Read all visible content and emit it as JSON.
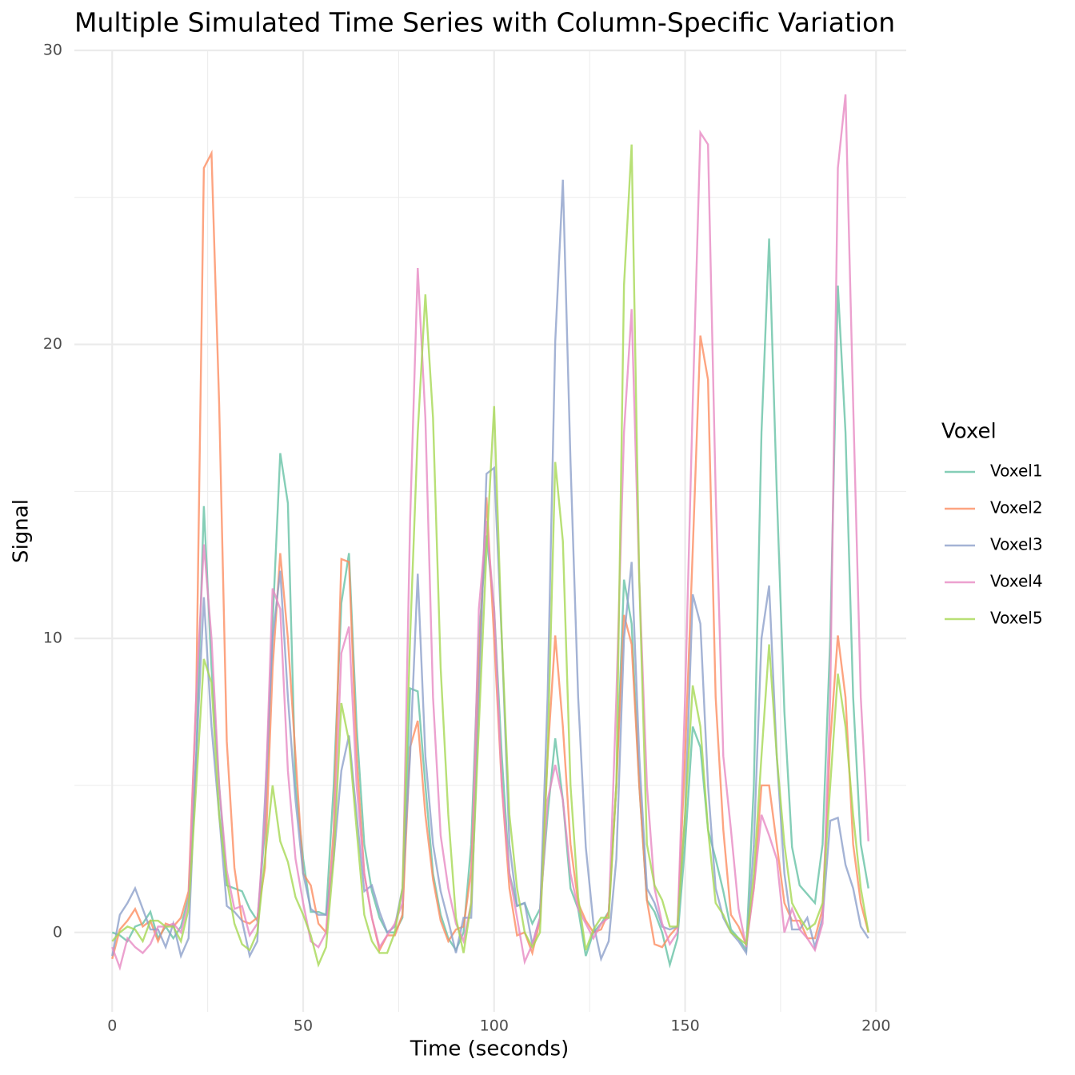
{
  "chart_data": {
    "type": "line",
    "title": "Multiple Simulated Time Series with Column-Specific Variation",
    "x_label": "Time (seconds)",
    "y_label": "Signal",
    "legend_title": "Voxel",
    "legend_position": "right",
    "grid": true,
    "xlim": [
      -9.9,
      207.9
    ],
    "ylim": [
      -2.7,
      30
    ],
    "xticks": [
      0,
      50,
      100,
      150,
      200
    ],
    "yticks": [
      0,
      10,
      20,
      30
    ],
    "minor_xticks": [
      25,
      75,
      125,
      175
    ],
    "minor_yticks": [
      5,
      15,
      25
    ],
    "x": [
      0,
      2,
      4,
      6,
      8,
      10,
      12,
      14,
      16,
      18,
      20,
      22,
      24,
      26,
      28,
      30,
      32,
      34,
      36,
      38,
      40,
      42,
      44,
      46,
      48,
      50,
      52,
      54,
      56,
      58,
      60,
      62,
      64,
      66,
      68,
      70,
      72,
      74,
      76,
      78,
      80,
      82,
      84,
      86,
      88,
      90,
      92,
      94,
      96,
      98,
      100,
      102,
      104,
      106,
      108,
      110,
      112,
      114,
      116,
      118,
      120,
      122,
      124,
      126,
      128,
      130,
      132,
      134,
      136,
      138,
      140,
      142,
      144,
      146,
      148,
      150,
      152,
      154,
      156,
      158,
      160,
      162,
      164,
      166,
      168,
      170,
      172,
      174,
      176,
      178,
      180,
      182,
      184,
      186,
      188,
      190,
      192,
      194,
      196,
      198
    ],
    "series": [
      {
        "name": "Voxel1",
        "color": "#66c2a5",
        "values": [
          0,
          -0.1,
          -0.3,
          0.2,
          0.3,
          0.7,
          -0.2,
          0.2,
          -0.2,
          0.2,
          1.2,
          6,
          14.5,
          9,
          5,
          1.6,
          1.5,
          1.4,
          0.8,
          0.4,
          3.5,
          10.5,
          16.3,
          14.6,
          5,
          2.5,
          0.7,
          0.7,
          0.6,
          5,
          11.2,
          12.9,
          7,
          3,
          1.4,
          0.5,
          0,
          0,
          0.5,
          8.3,
          8.2,
          5,
          2,
          0.6,
          -0.2,
          -0.6,
          0,
          3,
          10,
          13.5,
          11,
          6,
          2,
          0.9,
          1,
          0.3,
          0.8,
          4,
          6.6,
          4.5,
          1.5,
          0.8,
          -0.8,
          0,
          0.3,
          0.7,
          5,
          12,
          10.5,
          5,
          1.1,
          0.7,
          0,
          -1.1,
          -0.2,
          3,
          7,
          6.3,
          3.5,
          2.5,
          1.4,
          0.1,
          -0.2,
          -0.6,
          5,
          17,
          23.6,
          15,
          7.5,
          2.9,
          1.6,
          1.3,
          1,
          3,
          10,
          22,
          17,
          8,
          3,
          1.5
        ]
      },
      {
        "name": "Voxel2",
        "color": "#fc8d62",
        "values": [
          -0.9,
          0.1,
          0.4,
          0.8,
          0.2,
          0.4,
          -0.3,
          0.3,
          0.2,
          0.5,
          1.4,
          8,
          26,
          26.5,
          18,
          6.5,
          2.2,
          0.4,
          0.3,
          0.5,
          2.2,
          9,
          12.9,
          10,
          6,
          2,
          1.6,
          0.3,
          0,
          3.5,
          12.7,
          12.6,
          6,
          2,
          0.5,
          -0.6,
          -0.1,
          -0.1,
          0.6,
          6.3,
          7.2,
          4,
          1.8,
          0.4,
          -0.3,
          0.1,
          0.2,
          2.1,
          9,
          14.8,
          10,
          5,
          1.5,
          -0.1,
          0,
          -0.7,
          0.4,
          6,
          10.1,
          7,
          3,
          1,
          0.4,
          0,
          0.1,
          0.7,
          5,
          10.8,
          9.8,
          5,
          1.1,
          -0.4,
          -0.5,
          -0.1,
          0.2,
          6,
          13,
          20.3,
          18.8,
          8,
          3.5,
          0.6,
          0.2,
          -0.4,
          1.5,
          5,
          5,
          3,
          1,
          0.4,
          0.4,
          -0.2,
          -0.2,
          0.8,
          6.5,
          10.1,
          8,
          3,
          1,
          0
        ]
      },
      {
        "name": "Voxel3",
        "color": "#8da0cb",
        "values": [
          -0.8,
          0.6,
          1,
          1.5,
          0.8,
          0.1,
          0.1,
          -0.5,
          0.3,
          -0.8,
          -0.2,
          6,
          11.4,
          7,
          4,
          0.9,
          0.7,
          0.4,
          -0.8,
          -0.3,
          4.5,
          10,
          12.3,
          8,
          4.5,
          2,
          0.8,
          0.6,
          0.6,
          2.5,
          5.5,
          6.7,
          4,
          1.4,
          1.6,
          0.7,
          0,
          0.2,
          1.5,
          6,
          12.2,
          6,
          3,
          1.4,
          0.4,
          -0.7,
          0.5,
          0.5,
          8,
          15.6,
          15.8,
          10,
          3,
          0.9,
          1,
          -0.4,
          0.5,
          8,
          20.1,
          25.6,
          16,
          8,
          2.9,
          0.3,
          -0.9,
          -0.3,
          2.5,
          10,
          12.6,
          6,
          1.5,
          1,
          0.2,
          0.1,
          0.2,
          4,
          11.5,
          10.5,
          5,
          1.5,
          0.5,
          0,
          -0.3,
          -0.7,
          3,
          10,
          11.8,
          6,
          2,
          0.1,
          0.1,
          0.5,
          -0.5,
          0.5,
          3.8,
          3.9,
          2.3,
          1.5,
          0.2,
          -0.2
        ]
      },
      {
        "name": "Voxel4",
        "color": "#e78ac3",
        "values": [
          -0.5,
          -1.2,
          -0.2,
          -0.5,
          -0.7,
          -0.4,
          0.2,
          0.2,
          0.3,
          0,
          1,
          8,
          13.2,
          10,
          5,
          2.1,
          0.8,
          0.9,
          -0.1,
          0.3,
          4,
          11.7,
          11,
          5.5,
          2.5,
          1,
          -0.3,
          -0.5,
          0,
          3,
          9.5,
          10.4,
          5,
          2,
          0.5,
          -0.5,
          -0.1,
          0.3,
          1,
          14,
          22.6,
          17.5,
          8,
          3.3,
          1.5,
          0.3,
          -0.3,
          1,
          11,
          14,
          11,
          5,
          2,
          0.5,
          -1,
          -0.4,
          0.5,
          4.5,
          5.7,
          4.5,
          2,
          0.8,
          0.3,
          -0.2,
          0.3,
          0.5,
          8,
          17,
          21.2,
          12,
          5,
          1.5,
          0.3,
          -0.4,
          0,
          8,
          18,
          27.2,
          26.8,
          15,
          6,
          3.5,
          0.8,
          -0.5,
          1.5,
          4,
          3.3,
          2.5,
          0,
          0.8,
          0.1,
          -0.2,
          -0.6,
          0.3,
          8,
          26,
          28.5,
          18,
          8,
          3.1
        ]
      },
      {
        "name": "Voxel5",
        "color": "#a6d854",
        "values": [
          -0.3,
          0,
          0.2,
          0.1,
          -0.3,
          0.4,
          0.4,
          0.2,
          0.2,
          -0.3,
          0.8,
          5,
          9.3,
          8.5,
          4,
          1.8,
          0.3,
          -0.4,
          -0.6,
          0,
          2.5,
          5,
          3.1,
          2.4,
          1.2,
          0.6,
          -0.1,
          -1.1,
          -0.5,
          2.5,
          7.8,
          6.5,
          3.5,
          0.6,
          -0.3,
          -0.7,
          -0.7,
          0,
          1.5,
          10,
          17,
          21.7,
          17.5,
          9,
          4,
          0.5,
          -0.7,
          1,
          7,
          13,
          17.9,
          10,
          4,
          1.5,
          0,
          -0.5,
          0,
          6,
          16,
          13.3,
          5,
          1.2,
          -0.6,
          0.1,
          0.5,
          0.5,
          5,
          22,
          26.8,
          12,
          3,
          1.6,
          1.1,
          0.2,
          0.2,
          4,
          8.4,
          7,
          3.5,
          1,
          0.6,
          0,
          -0.2,
          -0.4,
          2,
          6,
          9.8,
          6,
          3,
          1,
          0.5,
          0.1,
          0.3,
          1,
          5,
          8.8,
          7,
          4,
          1.5,
          0
        ]
      }
    ]
  }
}
